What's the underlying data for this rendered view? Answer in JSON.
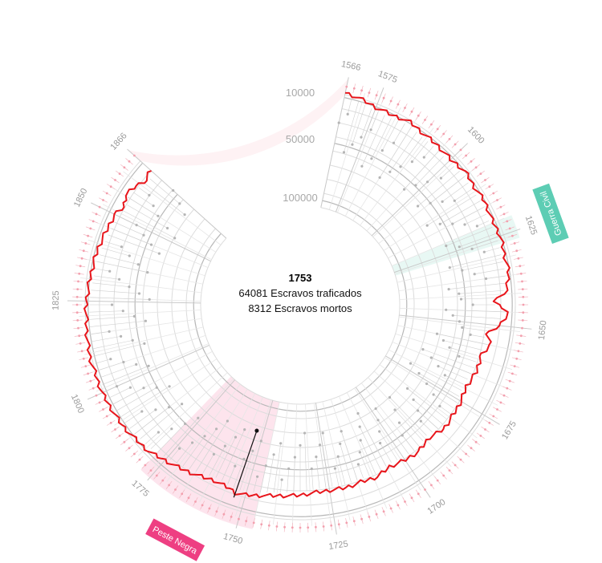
{
  "chart_data": {
    "type": "radial-line",
    "center_info": {
      "year": "1753",
      "trafficked_text": "64081 Escravos traficados",
      "deaths_text": "8312 Escravos mortos"
    },
    "ring_labels": [
      "10000",
      "50000",
      "100000"
    ],
    "year_ticks": [
      "1566",
      "1575",
      "1600",
      "1625",
      "1650",
      "1675",
      "1700",
      "1725",
      "1750",
      "1775",
      "1800",
      "1825",
      "1850",
      "1866"
    ],
    "year_range": [
      1566,
      1866
    ],
    "annotations": [
      {
        "label": "Guerra Civil",
        "start": 1621,
        "end": 1627,
        "color": "#5dcdb4"
      },
      {
        "label": "Peste Negra",
        "start": 1746,
        "end": 1778,
        "color": "#ee3f82"
      }
    ],
    "highlight_year": 1753,
    "series": [
      {
        "color": "#e8151b",
        "values": [
          [
            1566,
            6000
          ],
          [
            1570,
            7500
          ],
          [
            1575,
            10500
          ],
          [
            1580,
            11000
          ],
          [
            1585,
            9000
          ],
          [
            1590,
            11000
          ],
          [
            1595,
            11500
          ],
          [
            1600,
            12500
          ],
          [
            1605,
            10000
          ],
          [
            1610,
            11500
          ],
          [
            1615,
            10500
          ],
          [
            1620,
            12000
          ],
          [
            1625,
            10500
          ],
          [
            1630,
            11500
          ],
          [
            1635,
            11000
          ],
          [
            1640,
            14000
          ],
          [
            1643,
            26000
          ],
          [
            1646,
            13000
          ],
          [
            1650,
            20000
          ],
          [
            1653,
            30000
          ],
          [
            1656,
            25000
          ],
          [
            1660,
            31000
          ],
          [
            1665,
            30000
          ],
          [
            1670,
            33000
          ],
          [
            1675,
            31000
          ],
          [
            1680,
            30000
          ],
          [
            1685,
            29000
          ],
          [
            1690,
            33000
          ],
          [
            1695,
            30000
          ],
          [
            1700,
            31000
          ],
          [
            1705,
            33000
          ],
          [
            1710,
            30000
          ],
          [
            1715,
            31000
          ],
          [
            1720,
            30000
          ],
          [
            1725,
            30500
          ],
          [
            1730,
            30000
          ],
          [
            1735,
            28000
          ],
          [
            1740,
            27000
          ],
          [
            1745,
            25000
          ],
          [
            1750,
            22000
          ],
          [
            1753,
            21000
          ],
          [
            1755,
            23000
          ],
          [
            1760,
            24000
          ],
          [
            1765,
            21000
          ],
          [
            1770,
            18000
          ],
          [
            1775,
            15000
          ],
          [
            1780,
            11000
          ],
          [
            1785,
            9500
          ],
          [
            1790,
            7500
          ],
          [
            1795,
            7000
          ],
          [
            1800,
            6000
          ],
          [
            1805,
            6500
          ],
          [
            1810,
            6000
          ],
          [
            1815,
            7000
          ],
          [
            1820,
            8000
          ],
          [
            1825,
            8500
          ],
          [
            1830,
            10000
          ],
          [
            1835,
            11000
          ],
          [
            1840,
            12000
          ],
          [
            1845,
            14000
          ],
          [
            1850,
            15000
          ],
          [
            1853,
            19000
          ],
          [
            1856,
            15000
          ],
          [
            1860,
            18000
          ],
          [
            1863,
            22000
          ],
          [
            1866,
            19000
          ]
        ]
      }
    ]
  }
}
